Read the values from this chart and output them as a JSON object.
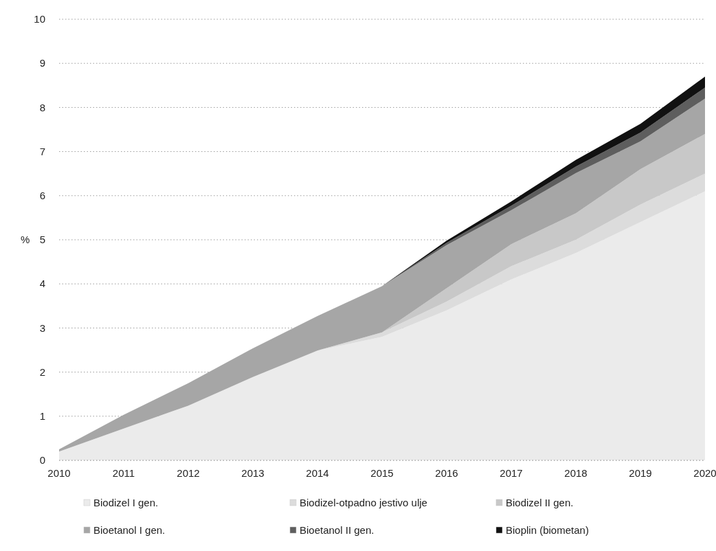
{
  "chart_data": {
    "type": "area",
    "stacked": true,
    "ylabel": "%",
    "x": [
      2010,
      2011,
      2012,
      2013,
      2014,
      2015,
      2016,
      2017,
      2018,
      2019,
      2020
    ],
    "xlim": [
      2010,
      2020
    ],
    "xticks": [
      2010,
      2011,
      2012,
      2013,
      2014,
      2015,
      2016,
      2017,
      2018,
      2019,
      2020
    ],
    "ylim": [
      0,
      10
    ],
    "yticks": [
      0,
      1,
      2,
      3,
      4,
      5,
      6,
      7,
      8,
      9,
      10
    ],
    "grid": "y",
    "line_style": "dotted",
    "legend": "bottom",
    "series": [
      {
        "name": "Biodizel  I gen.",
        "color": "#ebebeb",
        "values": [
          0.2,
          0.72,
          1.24,
          1.89,
          2.49,
          2.8,
          3.4,
          4.1,
          4.7,
          5.4,
          6.1
        ]
      },
      {
        "name": "Biodizel-otpadno jestivo ulje",
        "color": "#dcdcdc",
        "values": [
          0,
          0,
          0,
          0,
          0,
          0.1,
          0.2,
          0.3,
          0.3,
          0.4,
          0.4
        ]
      },
      {
        "name": "Biodizel II gen.",
        "color": "#c8c8c8",
        "values": [
          0,
          0,
          0,
          0,
          0,
          0,
          0.3,
          0.5,
          0.6,
          0.8,
          0.9
        ]
      },
      {
        "name": "Bioetanol I gen.",
        "color": "#a6a6a6",
        "values": [
          0.05,
          0.31,
          0.51,
          0.65,
          0.78,
          1.05,
          0.98,
          0.77,
          0.91,
          0.63,
          0.8
        ]
      },
      {
        "name": "Bioetanol II gen.",
        "color": "#5e5e5e",
        "values": [
          0,
          0,
          0,
          0,
          0,
          0,
          0.05,
          0.1,
          0.15,
          0.2,
          0.25
        ]
      },
      {
        "name": "Bioplin (biometan)",
        "color": "#111111",
        "values": [
          0,
          0,
          0,
          0,
          0,
          0,
          0.05,
          0.1,
          0.15,
          0.2,
          0.25
        ]
      }
    ]
  }
}
